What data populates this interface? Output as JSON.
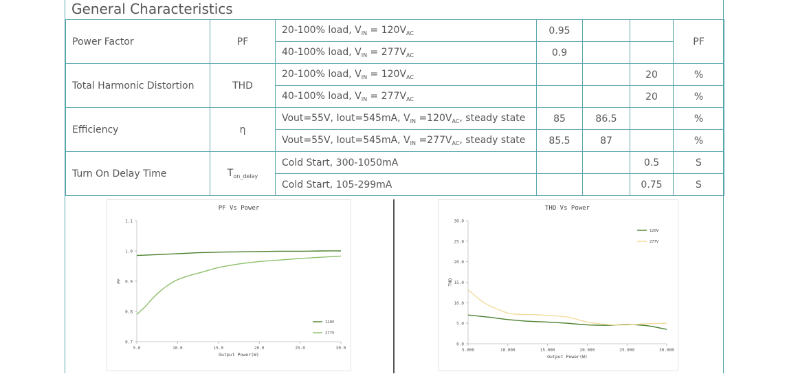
{
  "section_title": "General Characteristics",
  "rows": [
    {
      "param": "Power Factor",
      "symbol": "PF",
      "cond_pre": "20-100% load, V",
      "cond_sub1": "IN",
      "cond_mid": " = 120V",
      "cond_sub2": "AC",
      "cond_post": "",
      "min": "0.95",
      "typ": "",
      "max": "",
      "unit": "PF"
    },
    {
      "param": "",
      "symbol": "",
      "cond_pre": "40-100% load, V",
      "cond_sub1": "IN",
      "cond_mid": " = 277V",
      "cond_sub2": "AC",
      "cond_post": "",
      "min": "0.9",
      "typ": "",
      "max": "",
      "unit": ""
    },
    {
      "param": "Total Harmonic Distortion",
      "symbol": "THD",
      "cond_pre": "20-100% load, V",
      "cond_sub1": "IN",
      "cond_mid": " = 120V",
      "cond_sub2": "AC",
      "cond_post": "",
      "min": "",
      "typ": "",
      "max": "20",
      "unit": "%"
    },
    {
      "param": "",
      "symbol": "",
      "cond_pre": "40-100% load, V",
      "cond_sub1": "IN",
      "cond_mid": " = 277V",
      "cond_sub2": "AC",
      "cond_post": "",
      "min": "",
      "typ": "",
      "max": "20",
      "unit": "%"
    },
    {
      "param": "Efficiency",
      "symbol": "η",
      "cond_pre": "Vout=55V, Iout=545mA, V",
      "cond_sub1": "IN",
      "cond_mid": " =120V",
      "cond_sub2": "AC",
      "cond_post": ", steady state",
      "min": "85",
      "typ": "86.5",
      "max": "",
      "unit": "%"
    },
    {
      "param": "",
      "symbol": "",
      "cond_pre": "Vout=55V, Iout=545mA, V",
      "cond_sub1": "IN",
      "cond_mid": " =277V",
      "cond_sub2": "AC",
      "cond_post": ", steady state",
      "min": "85.5",
      "typ": "87",
      "max": "",
      "unit": "%"
    },
    {
      "param": "Turn On Delay Time",
      "symbol_main": "T",
      "symbol_sub": "on_delay",
      "cond_pre": "Cold Start, 300-1050mA",
      "cond_sub1": "",
      "cond_mid": "",
      "cond_sub2": "",
      "cond_post": "",
      "min": "",
      "typ": "",
      "max": "0.5",
      "unit": "S"
    },
    {
      "param": "",
      "symbol": "",
      "cond_pre": "Cold Start, 105-299mA",
      "cond_sub1": "",
      "cond_mid": "",
      "cond_sub2": "",
      "cond_post": "",
      "min": "",
      "typ": "",
      "max": "0.75",
      "unit": "S"
    }
  ],
  "chart_data": [
    {
      "type": "line",
      "title": "PF Vs Power",
      "xlabel": "Output Power(W)",
      "ylabel": "PF",
      "xlim": [
        5,
        30
      ],
      "ylim": [
        0.7,
        1.1
      ],
      "xticks": [
        "5.0",
        "10.0",
        "15.0",
        "20.0",
        "25.0",
        "30.0"
      ],
      "yticks": [
        "0.7",
        "0.8",
        "0.9",
        "1.0",
        "1.1"
      ],
      "legend_position": "bottom-right",
      "series": [
        {
          "name": "120V",
          "color": "#4a7f2c",
          "x": [
            5,
            7.5,
            10,
            12.5,
            15,
            17.5,
            20,
            22.5,
            25,
            27.5,
            30
          ],
          "y": [
            0.985,
            0.988,
            0.991,
            0.994,
            0.996,
            0.997,
            0.998,
            0.999,
            0.999,
            1.0,
            1.0
          ]
        },
        {
          "name": "277V",
          "color": "#8cbf6a",
          "x": [
            5,
            6,
            7,
            8,
            9,
            10,
            11,
            12,
            13,
            15,
            17.5,
            20,
            22.5,
            25,
            27.5,
            30
          ],
          "y": [
            0.79,
            0.815,
            0.845,
            0.87,
            0.89,
            0.905,
            0.915,
            0.923,
            0.93,
            0.945,
            0.957,
            0.965,
            0.97,
            0.975,
            0.979,
            0.983
          ]
        }
      ]
    },
    {
      "type": "line",
      "title": "THD Vs Power",
      "xlabel": "Output Power(W)",
      "ylabel": "THD",
      "xlim": [
        5,
        30
      ],
      "ylim": [
        0,
        30
      ],
      "xticks": [
        "5.000",
        "10.000",
        "15.000",
        "20.000",
        "25.000",
        "30.000"
      ],
      "yticks": [
        "0.0",
        "5.0",
        "10.0",
        "15.0",
        "20.0",
        "25.0",
        "30.0"
      ],
      "legend_position": "top-right",
      "series": [
        {
          "name": "120V",
          "color": "#4a7f2c",
          "x": [
            5,
            7.5,
            10,
            12.5,
            15,
            17.5,
            20,
            22.5,
            25,
            27.5,
            30
          ],
          "y": [
            7,
            6.5,
            5.9,
            5.5,
            5.3,
            5.0,
            4.6,
            4.5,
            4.7,
            4.4,
            3.5
          ]
        },
        {
          "name": "277V",
          "color": "#f0dc9a",
          "x": [
            5,
            6,
            7,
            8,
            9,
            10,
            11,
            12,
            13,
            15,
            17.5,
            20,
            22.5,
            25,
            27.5,
            30
          ],
          "y": [
            13.2,
            11.5,
            10,
            9,
            8.2,
            7.5,
            7.2,
            7.1,
            7.1,
            6.9,
            6.5,
            5.3,
            4.7,
            4.6,
            4.9,
            5
          ]
        }
      ]
    }
  ]
}
